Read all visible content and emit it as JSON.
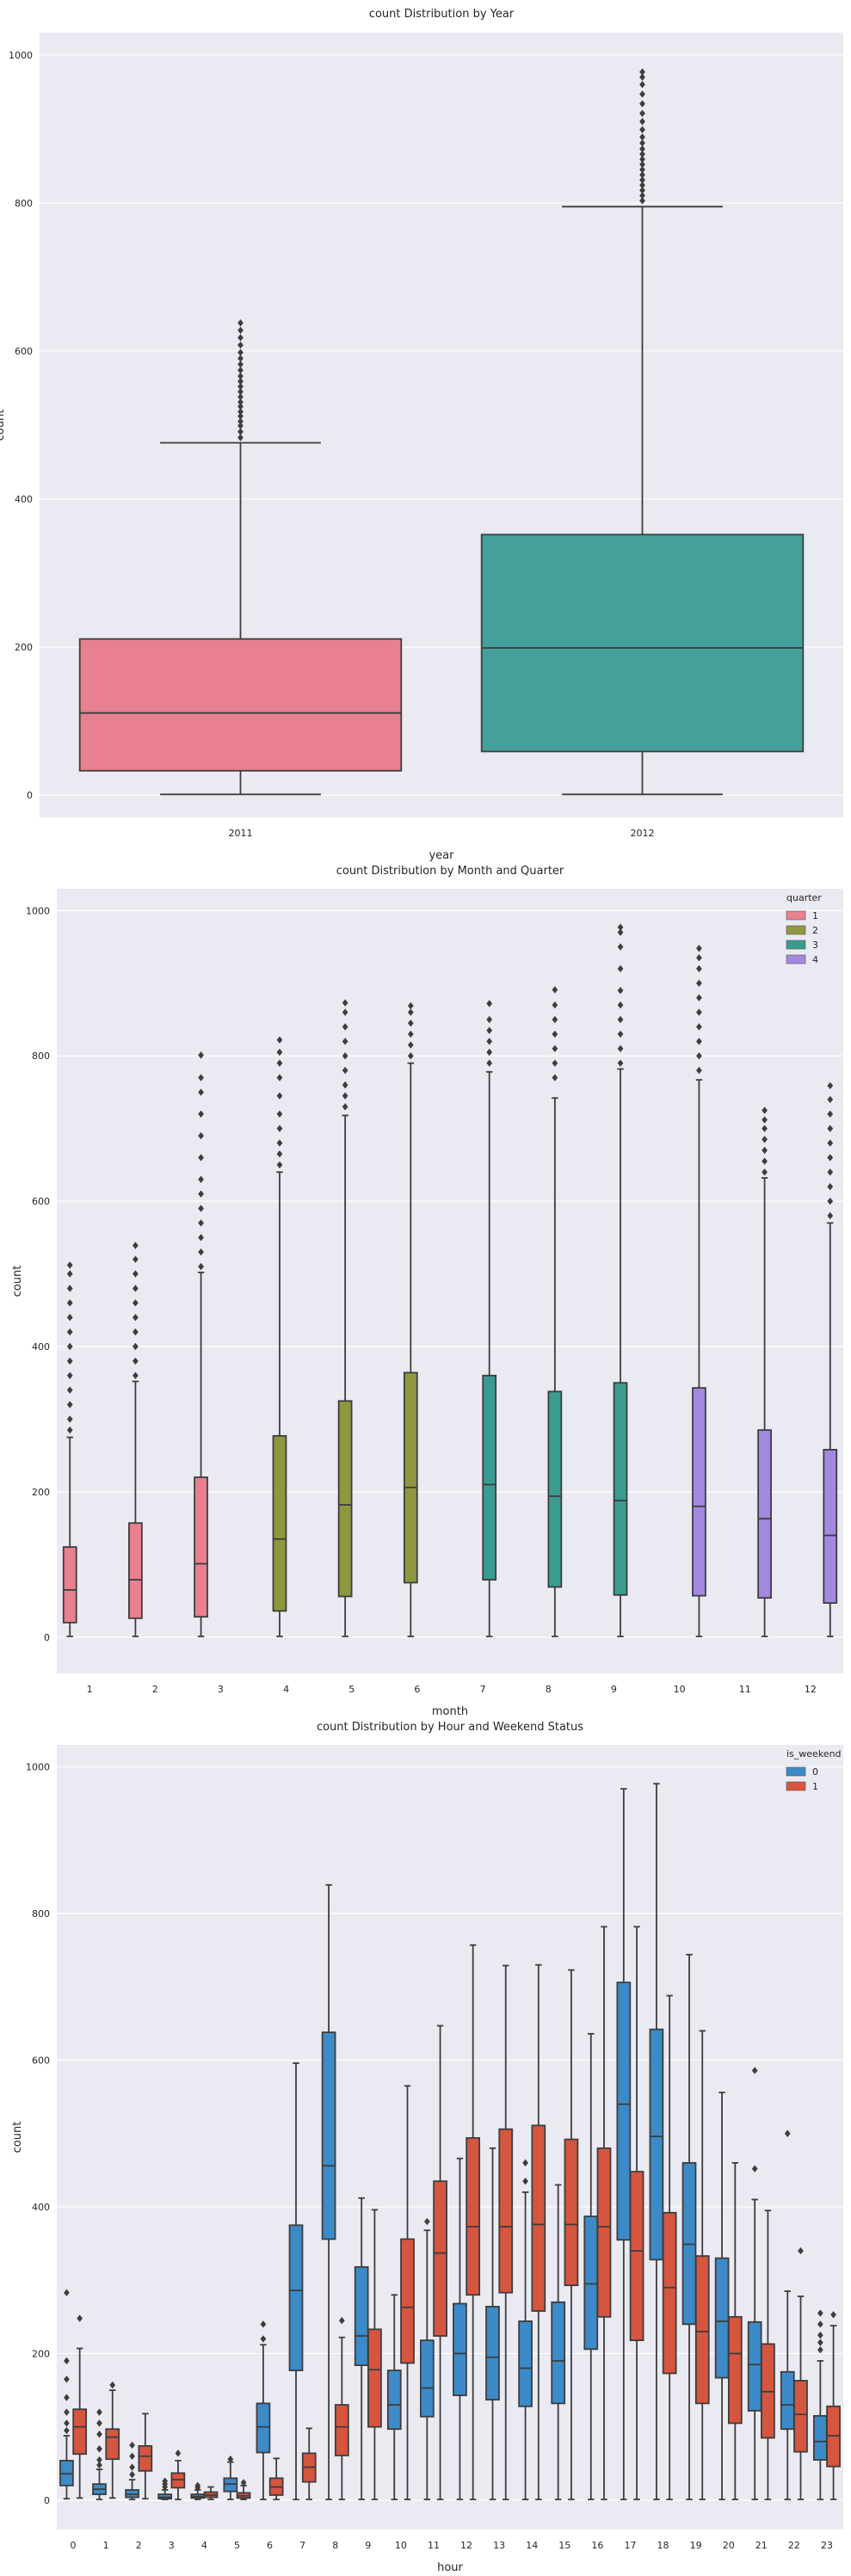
{
  "chart_data": [
    {
      "type": "box",
      "title": "count Distribution by Year",
      "xlabel": "year",
      "ylabel": "count",
      "ylim": [
        -30,
        1030
      ],
      "yticks": [
        0,
        200,
        400,
        600,
        800,
        1000
      ],
      "grid": true,
      "categories": [
        "2011",
        "2012"
      ],
      "boxes": [
        {
          "category": "2011",
          "color": "#e8808f",
          "min": 1,
          "q1": 33,
          "median": 111,
          "q3": 211,
          "max": 476,
          "outliers": [
            483,
            491,
            499,
            505,
            512,
            518,
            525,
            531,
            538,
            545,
            552,
            559,
            566,
            574,
            582,
            590,
            598,
            608,
            618,
            628,
            638
          ]
        },
        {
          "category": "2012",
          "color": "#44a09a",
          "min": 1,
          "q1": 59,
          "median": 199,
          "q3": 352,
          "max": 795,
          "outliers": [
            803,
            810,
            817,
            824,
            831,
            838,
            845,
            852,
            859,
            866,
            873,
            881,
            889,
            899,
            910,
            921,
            934,
            947,
            960,
            970,
            977
          ]
        }
      ]
    },
    {
      "type": "box",
      "title": "count Distribution by Month and Quarter",
      "xlabel": "month",
      "ylabel": "count",
      "ylim": [
        -50,
        1030
      ],
      "yticks": [
        0,
        200,
        400,
        600,
        800,
        1000
      ],
      "grid": true,
      "categories": [
        "1",
        "2",
        "3",
        "4",
        "5",
        "6",
        "7",
        "8",
        "9",
        "10",
        "11",
        "12"
      ],
      "legend": {
        "title": "quarter",
        "placement": "top-right",
        "entries": [
          {
            "label": "1",
            "color": "#e8808f"
          },
          {
            "label": "2",
            "color": "#8f973f"
          },
          {
            "label": "3",
            "color": "#3a9c91"
          },
          {
            "label": "4",
            "color": "#a488e0"
          }
        ]
      },
      "boxes": [
        {
          "category": "1",
          "quarter": "1",
          "min": 1,
          "q1": 20,
          "median": 65,
          "q3": 124,
          "max": 275,
          "outliers": [
            285,
            300,
            320,
            340,
            360,
            380,
            400,
            420,
            440,
            460,
            480,
            500,
            512
          ]
        },
        {
          "category": "2",
          "quarter": "1",
          "min": 1,
          "q1": 26,
          "median": 79,
          "q3": 157,
          "max": 352,
          "outliers": [
            360,
            380,
            400,
            420,
            440,
            460,
            480,
            500,
            520,
            539
          ]
        },
        {
          "category": "3",
          "quarter": "1",
          "min": 1,
          "q1": 28,
          "median": 101,
          "q3": 220,
          "max": 502,
          "outliers": [
            510,
            530,
            550,
            570,
            590,
            610,
            630,
            660,
            690,
            720,
            750,
            770,
            801
          ]
        },
        {
          "category": "4",
          "quarter": "2",
          "min": 1,
          "q1": 36,
          "median": 135,
          "q3": 277,
          "max": 640,
          "outliers": [
            650,
            665,
            680,
            700,
            720,
            745,
            770,
            790,
            805,
            822
          ]
        },
        {
          "category": "5",
          "quarter": "2",
          "min": 1,
          "q1": 56,
          "median": 182,
          "q3": 325,
          "max": 718,
          "outliers": [
            730,
            745,
            760,
            780,
            800,
            820,
            840,
            860,
            873
          ]
        },
        {
          "category": "6",
          "quarter": "2",
          "min": 1,
          "q1": 75,
          "median": 206,
          "q3": 364,
          "max": 790,
          "outliers": [
            800,
            815,
            830,
            845,
            860,
            869
          ]
        },
        {
          "category": "7",
          "quarter": "3",
          "min": 1,
          "q1": 79,
          "median": 210,
          "q3": 360,
          "max": 778,
          "outliers": [
            790,
            805,
            820,
            835,
            850,
            872
          ]
        },
        {
          "category": "8",
          "quarter": "3",
          "min": 1,
          "q1": 69,
          "median": 194,
          "q3": 338,
          "max": 742,
          "outliers": [
            770,
            790,
            810,
            830,
            850,
            870,
            891
          ]
        },
        {
          "category": "9",
          "quarter": "3",
          "min": 1,
          "q1": 58,
          "median": 188,
          "q3": 350,
          "max": 782,
          "outliers": [
            790,
            810,
            830,
            850,
            870,
            890,
            920,
            950,
            970,
            977
          ]
        },
        {
          "category": "10",
          "quarter": "4",
          "min": 1,
          "q1": 57,
          "median": 180,
          "q3": 343,
          "max": 767,
          "outliers": [
            780,
            800,
            820,
            840,
            860,
            880,
            900,
            920,
            935,
            948
          ]
        },
        {
          "category": "11",
          "quarter": "4",
          "min": 1,
          "q1": 54,
          "median": 163,
          "q3": 285,
          "max": 632,
          "outliers": [
            640,
            655,
            670,
            685,
            700,
            712,
            725
          ]
        },
        {
          "category": "12",
          "quarter": "4",
          "min": 1,
          "q1": 47,
          "median": 140,
          "q3": 258,
          "max": 570,
          "outliers": [
            580,
            600,
            620,
            640,
            660,
            680,
            700,
            720,
            740,
            759
          ]
        }
      ]
    },
    {
      "type": "box",
      "title": "count Distribution by Hour and Weekend Status",
      "xlabel": "hour",
      "ylabel": "count",
      "ylim": [
        -40,
        1030
      ],
      "yticks": [
        0,
        200,
        400,
        600,
        800,
        1000
      ],
      "grid": true,
      "categories": [
        "0",
        "1",
        "2",
        "3",
        "4",
        "5",
        "6",
        "7",
        "8",
        "9",
        "10",
        "11",
        "12",
        "13",
        "14",
        "15",
        "16",
        "17",
        "18",
        "19",
        "20",
        "21",
        "22",
        "23"
      ],
      "legend": {
        "title": "is_weekend",
        "placement": "top-right",
        "entries": [
          {
            "label": "0",
            "color": "#3c8ac7"
          },
          {
            "label": "1",
            "color": "#d6553f"
          }
        ]
      },
      "series": [
        {
          "name": "0",
          "color": "#3c8ac7",
          "boxes": [
            {
              "hour": "0",
              "min": 2,
              "q1": 20,
              "median": 36,
              "q3": 54,
              "max": 88,
              "outliers": [
                95,
                105,
                120,
                140,
                165,
                190,
                283
              ]
            },
            {
              "hour": "1",
              "min": 1,
              "q1": 8,
              "median": 15,
              "q3": 22,
              "max": 42,
              "outliers": [
                48,
                55,
                70,
                90,
                105,
                120
              ]
            },
            {
              "hour": "2",
              "min": 1,
              "q1": 4,
              "median": 8,
              "q3": 14,
              "max": 28,
              "outliers": [
                35,
                45,
                60,
                75
              ]
            },
            {
              "hour": "3",
              "min": 1,
              "q1": 2,
              "median": 4,
              "q3": 8,
              "max": 14,
              "outliers": [
                18,
                22,
                26
              ]
            },
            {
              "hour": "4",
              "min": 1,
              "q1": 3,
              "median": 5,
              "q3": 8,
              "max": 14,
              "outliers": [
                17,
                20
              ]
            },
            {
              "hour": "5",
              "min": 1,
              "q1": 12,
              "median": 22,
              "q3": 30,
              "max": 52,
              "outliers": [
                56
              ]
            },
            {
              "hour": "6",
              "min": 1,
              "q1": 65,
              "median": 100,
              "q3": 132,
              "max": 212,
              "outliers": [
                220,
                240
              ]
            },
            {
              "hour": "7",
              "min": 1,
              "q1": 177,
              "median": 286,
              "q3": 375,
              "max": 596,
              "outliers": []
            },
            {
              "hour": "8",
              "min": 1,
              "q1": 356,
              "median": 456,
              "q3": 638,
              "max": 839,
              "outliers": []
            },
            {
              "hour": "9",
              "min": 1,
              "q1": 184,
              "median": 224,
              "q3": 318,
              "max": 412,
              "outliers": []
            },
            {
              "hour": "10",
              "min": 1,
              "q1": 97,
              "median": 130,
              "q3": 177,
              "max": 280,
              "outliers": []
            },
            {
              "hour": "11",
              "min": 1,
              "q1": 114,
              "median": 153,
              "q3": 218,
              "max": 368,
              "outliers": [
                380
              ]
            },
            {
              "hour": "12",
              "min": 1,
              "q1": 143,
              "median": 200,
              "q3": 268,
              "max": 466,
              "outliers": []
            },
            {
              "hour": "13",
              "min": 1,
              "q1": 137,
              "median": 195,
              "q3": 264,
              "max": 480,
              "outliers": []
            },
            {
              "hour": "14",
              "min": 1,
              "q1": 128,
              "median": 180,
              "q3": 244,
              "max": 420,
              "outliers": [
                435,
                460
              ]
            },
            {
              "hour": "15",
              "min": 1,
              "q1": 132,
              "median": 190,
              "q3": 270,
              "max": 430,
              "outliers": []
            },
            {
              "hour": "16",
              "min": 1,
              "q1": 206,
              "median": 295,
              "q3": 387,
              "max": 636,
              "outliers": []
            },
            {
              "hour": "17",
              "min": 1,
              "q1": 355,
              "median": 540,
              "q3": 706,
              "max": 970,
              "outliers": []
            },
            {
              "hour": "18",
              "min": 1,
              "q1": 328,
              "median": 496,
              "q3": 642,
              "max": 977,
              "outliers": []
            },
            {
              "hour": "19",
              "min": 1,
              "q1": 240,
              "median": 349,
              "q3": 460,
              "max": 744,
              "outliers": []
            },
            {
              "hour": "20",
              "min": 1,
              "q1": 167,
              "median": 244,
              "q3": 330,
              "max": 556,
              "outliers": []
            },
            {
              "hour": "21",
              "min": 1,
              "q1": 122,
              "median": 185,
              "q3": 243,
              "max": 410,
              "outliers": [
                452,
                586
              ]
            },
            {
              "hour": "22",
              "min": 1,
              "q1": 97,
              "median": 130,
              "q3": 175,
              "max": 285,
              "outliers": [
                500
              ]
            },
            {
              "hour": "23",
              "min": 1,
              "q1": 55,
              "median": 80,
              "q3": 115,
              "max": 190,
              "outliers": [
                205,
                215,
                225,
                240,
                255
              ]
            }
          ]
        },
        {
          "name": "1",
          "color": "#d6553f",
          "boxes": [
            {
              "hour": "0",
              "min": 3,
              "q1": 63,
              "median": 100,
              "q3": 124,
              "max": 207,
              "outliers": [
                248
              ]
            },
            {
              "hour": "1",
              "min": 3,
              "q1": 56,
              "median": 86,
              "q3": 97,
              "max": 150,
              "outliers": [
                157
              ]
            },
            {
              "hour": "2",
              "min": 2,
              "q1": 40,
              "median": 60,
              "q3": 74,
              "max": 118,
              "outliers": []
            },
            {
              "hour": "3",
              "min": 1,
              "q1": 17,
              "median": 28,
              "q3": 37,
              "max": 54,
              "outliers": [
                64
              ]
            },
            {
              "hour": "4",
              "min": 1,
              "q1": 4,
              "median": 7,
              "q3": 11,
              "max": 18,
              "outliers": []
            },
            {
              "hour": "5",
              "min": 1,
              "q1": 3,
              "median": 6,
              "q3": 10,
              "max": 20,
              "outliers": [
                24
              ]
            },
            {
              "hour": "6",
              "min": 1,
              "q1": 7,
              "median": 18,
              "q3": 30,
              "max": 57,
              "outliers": []
            },
            {
              "hour": "7",
              "min": 1,
              "q1": 25,
              "median": 45,
              "q3": 64,
              "max": 98,
              "outliers": []
            },
            {
              "hour": "8",
              "min": 1,
              "q1": 61,
              "median": 100,
              "q3": 130,
              "max": 222,
              "outliers": [
                245
              ]
            },
            {
              "hour": "9",
              "min": 1,
              "q1": 100,
              "median": 178,
              "q3": 233,
              "max": 396,
              "outliers": []
            },
            {
              "hour": "10",
              "min": 1,
              "q1": 187,
              "median": 263,
              "q3": 356,
              "max": 565,
              "outliers": []
            },
            {
              "hour": "11",
              "min": 1,
              "q1": 224,
              "median": 337,
              "q3": 435,
              "max": 647,
              "outliers": []
            },
            {
              "hour": "12",
              "min": 1,
              "q1": 280,
              "median": 373,
              "q3": 494,
              "max": 757,
              "outliers": []
            },
            {
              "hour": "13",
              "min": 1,
              "q1": 283,
              "median": 373,
              "q3": 506,
              "max": 729,
              "outliers": []
            },
            {
              "hour": "14",
              "min": 1,
              "q1": 258,
              "median": 376,
              "q3": 511,
              "max": 730,
              "outliers": []
            },
            {
              "hour": "15",
              "min": 1,
              "q1": 293,
              "median": 376,
              "q3": 492,
              "max": 723,
              "outliers": []
            },
            {
              "hour": "16",
              "min": 1,
              "q1": 250,
              "median": 373,
              "q3": 480,
              "max": 782,
              "outliers": []
            },
            {
              "hour": "17",
              "min": 1,
              "q1": 218,
              "median": 340,
              "q3": 448,
              "max": 782,
              "outliers": []
            },
            {
              "hour": "18",
              "min": 1,
              "q1": 173,
              "median": 290,
              "q3": 392,
              "max": 688,
              "outliers": []
            },
            {
              "hour": "19",
              "min": 1,
              "q1": 132,
              "median": 230,
              "q3": 333,
              "max": 640,
              "outliers": []
            },
            {
              "hour": "20",
              "min": 1,
              "q1": 105,
              "median": 200,
              "q3": 250,
              "max": 460,
              "outliers": []
            },
            {
              "hour": "21",
              "min": 1,
              "q1": 85,
              "median": 148,
              "q3": 213,
              "max": 395,
              "outliers": []
            },
            {
              "hour": "22",
              "min": 1,
              "q1": 66,
              "median": 117,
              "q3": 163,
              "max": 278,
              "outliers": [
                340
              ]
            },
            {
              "hour": "23",
              "min": 1,
              "q1": 46,
              "median": 88,
              "q3": 128,
              "max": 238,
              "outliers": [
                253
              ]
            }
          ]
        }
      ]
    }
  ]
}
